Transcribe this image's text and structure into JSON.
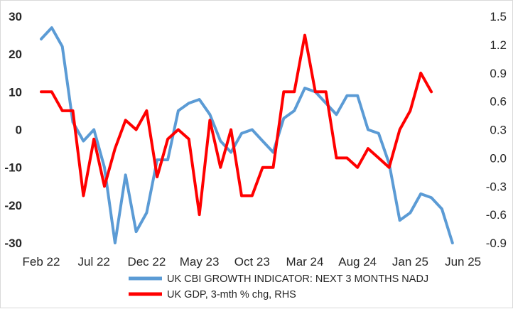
{
  "chart_data": {
    "type": "line",
    "title": "",
    "x_tick_labels": [
      "Feb 22",
      "Jul 22",
      "Dec 22",
      "May 23",
      "Oct 23",
      "Mar 24",
      "Aug 24",
      "Jan 25",
      "Jun 25"
    ],
    "x_tick_months": [
      0,
      5,
      10,
      15,
      20,
      25,
      30,
      35,
      40
    ],
    "left_axis": {
      "ylim": [
        -30,
        30
      ],
      "ticks": [
        30,
        20,
        10,
        0,
        -10,
        -20,
        -30
      ],
      "tick_labels": [
        "30",
        "20",
        "10",
        "0",
        "-10",
        "-20",
        "-30"
      ]
    },
    "right_axis": {
      "ylim": [
        -0.9,
        1.5
      ],
      "ticks": [
        1.5,
        1.2,
        0.9,
        0.6,
        0.3,
        0.0,
        -0.3,
        -0.6,
        -0.9
      ],
      "tick_labels": [
        "1.5",
        "1.2",
        "0.9",
        "0.6",
        "0.3",
        "0.0",
        "-0.3",
        "-0.6",
        "-0.9"
      ]
    },
    "series": [
      {
        "name": "UK CBI GROWTH INDICATOR: NEXT 3 MONTHS NADJ",
        "axis": "left",
        "color": "#5b9bd5",
        "start_month_index": 0,
        "values": [
          24,
          27,
          22,
          2,
          -3,
          0,
          -10,
          -30,
          -12,
          -27,
          -22,
          -8,
          -8,
          5,
          7,
          8,
          4,
          -3,
          -6,
          -1,
          0,
          -3,
          -6,
          3,
          5,
          11,
          10,
          7,
          4,
          9,
          9,
          0,
          -1,
          -9,
          -24,
          -22,
          -17,
          -18,
          -21,
          -30
        ]
      },
      {
        "name": "UK GDP, 3-mth % chg, RHS",
        "axis": "right",
        "color": "#ff0000",
        "start_month_index": 0,
        "values": [
          0.7,
          0.7,
          0.5,
          0.5,
          -0.4,
          0.2,
          -0.3,
          0.1,
          0.4,
          0.3,
          0.5,
          -0.2,
          0.2,
          0.3,
          0.2,
          -0.6,
          0.4,
          -0.1,
          0.3,
          -0.4,
          -0.4,
          -0.1,
          -0.1,
          0.7,
          0.7,
          1.3,
          0.7,
          0.7,
          0.0,
          0.0,
          -0.1,
          0.1,
          0.0,
          -0.1,
          0.3,
          0.5,
          0.9,
          0.7
        ]
      }
    ],
    "legend_position": "bottom"
  }
}
